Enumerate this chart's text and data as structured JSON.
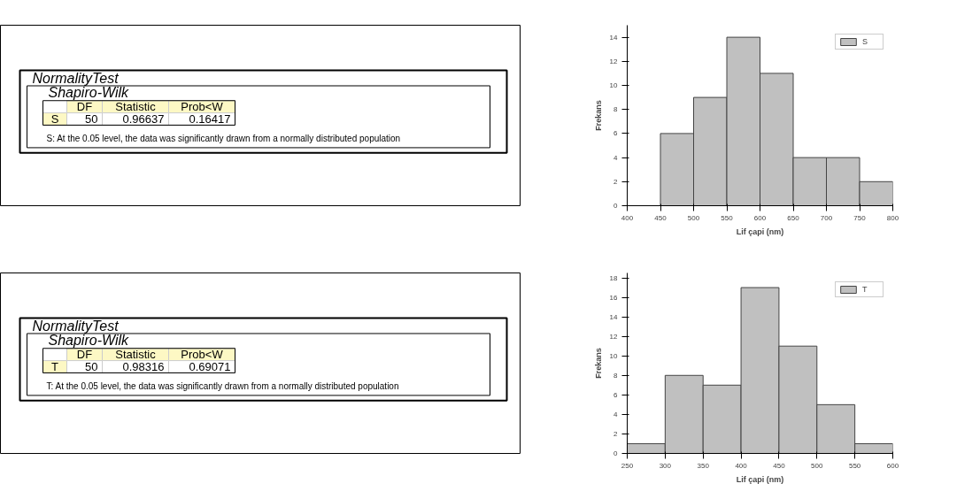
{
  "chart_data": [
    {
      "type": "other",
      "title": "NormalityTest",
      "subtitle": "Shapiro-Wilk",
      "annotations": [
        "DF",
        "Statistic",
        "Prob<W",
        "S",
        "50",
        "0.96637",
        "0.16417",
        "S: At the 0.05 level, the data was significantly drawn from a normally distributed population"
      ]
    },
    {
      "type": "histogram",
      "xlabel": "Lif çapi (nm)",
      "ylabel": "Frekans",
      "bins": [
        450,
        500,
        550,
        600,
        650,
        700,
        750,
        800
      ],
      "series": [
        {
          "name": "S",
          "color": "#c0c0c0",
          "values": [
            6,
            9,
            14,
            11,
            4,
            4,
            2
          ]
        }
      ],
      "xlim": [
        400,
        800
      ],
      "ylim": [
        0,
        15
      ],
      "xticks": [
        400,
        450,
        500,
        550,
        600,
        650,
        700,
        750,
        800
      ],
      "yticks": [
        0,
        2,
        4,
        6,
        8,
        10,
        12,
        14
      ],
      "legend": "top right"
    },
    {
      "type": "other",
      "title": "NormalityTest",
      "subtitle": "Shapiro-Wilk",
      "annotations": [
        "DF",
        "Statistic",
        "Prob<W",
        "T",
        "50",
        "0.98316",
        "0.69071",
        "T: At the 0.05 level, the data was significantly drawn from a normally distributed population"
      ]
    },
    {
      "type": "histogram",
      "xlabel": "Lif çapi (nm)",
      "ylabel": "Frekans",
      "bins": [
        250,
        300,
        350,
        400,
        450,
        500,
        550,
        600
      ],
      "series": [
        {
          "name": "T",
          "color": "#c0c0c0",
          "values": [
            1,
            8,
            7,
            17,
            11,
            5,
            1
          ]
        }
      ],
      "xlim": [
        250,
        600
      ],
      "ylim": [
        0,
        18.5
      ],
      "xticks": [
        250,
        300,
        350,
        400,
        450,
        500,
        550,
        600
      ],
      "yticks": [
        0,
        2,
        4,
        6,
        8,
        10,
        12,
        14,
        16,
        18
      ],
      "legend": "top right"
    }
  ]
}
